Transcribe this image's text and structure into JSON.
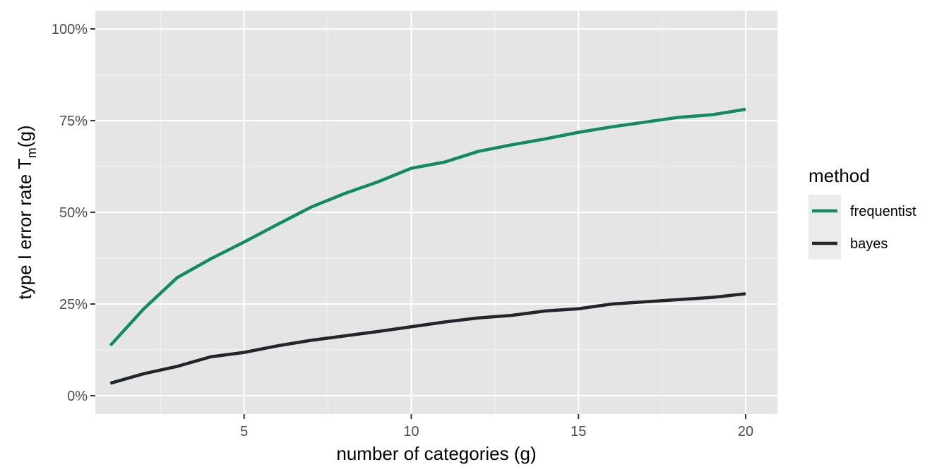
{
  "chart_data": {
    "type": "line",
    "xlabel": "number of categories (g)",
    "ylabel_prefix": "type I error rate T",
    "ylabel_subscript": "m",
    "ylabel_suffix": "(g)",
    "xlim": [
      0.55,
      20.95
    ],
    "ylim": [
      -0.05,
      1.05
    ],
    "x_ticks": [
      5,
      10,
      15,
      20
    ],
    "x_tick_labels": [
      "5",
      "10",
      "15",
      "20"
    ],
    "y_ticks": [
      0,
      0.25,
      0.5,
      0.75,
      1.0
    ],
    "y_tick_labels": [
      "0%",
      "25%",
      "50%",
      "75%",
      "100%"
    ],
    "grid": true,
    "legend": {
      "title": "method",
      "position": "right"
    },
    "x": [
      1,
      2,
      3,
      4,
      5,
      6,
      7,
      8,
      9,
      10,
      11,
      12,
      13,
      14,
      15,
      16,
      17,
      18,
      19,
      20
    ],
    "series": [
      {
        "name": "frequentist",
        "color": "#138a63",
        "values": [
          0.137,
          0.237,
          0.322,
          0.373,
          0.419,
          0.467,
          0.514,
          0.551,
          0.583,
          0.62,
          0.637,
          0.666,
          0.684,
          0.7,
          0.718,
          0.733,
          0.746,
          0.759,
          0.766,
          0.781
        ]
      },
      {
        "name": "bayes",
        "color": "#22262b",
        "values": [
          0.034,
          0.06,
          0.08,
          0.106,
          0.118,
          0.136,
          0.151,
          0.163,
          0.175,
          0.188,
          0.201,
          0.212,
          0.219,
          0.231,
          0.237,
          0.25,
          0.256,
          0.262,
          0.268,
          0.278
        ]
      }
    ]
  }
}
